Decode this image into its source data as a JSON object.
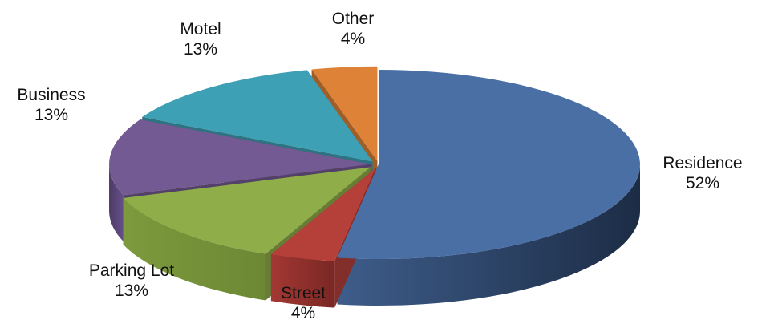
{
  "chart_data": {
    "type": "pie",
    "title": "",
    "categories": [
      "Residence",
      "Street",
      "Parking Lot",
      "Business",
      "Motel",
      "Other"
    ],
    "values": [
      52,
      4,
      13,
      13,
      13,
      4
    ],
    "value_labels": [
      "52%",
      "4%",
      "13%",
      "13%",
      "13%",
      "4%"
    ],
    "colors": [
      "#4a6fa5",
      "#b5403a",
      "#8fae4a",
      "#735a92",
      "#3ea0b4",
      "#dd8236"
    ],
    "style": "3d-exploded",
    "legend": "none"
  }
}
